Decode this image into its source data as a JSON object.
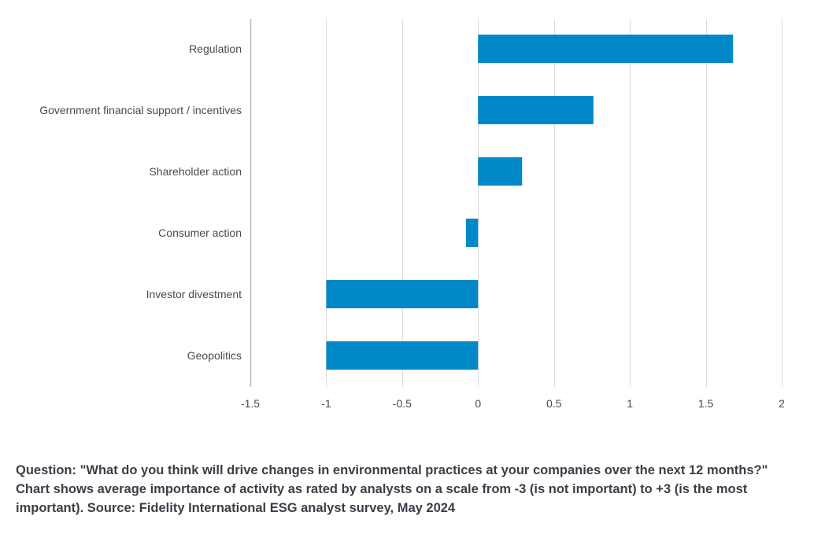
{
  "chart_data": {
    "type": "bar",
    "orientation": "horizontal",
    "categories": [
      "Regulation",
      "Government financial support / incentives",
      "Shareholder action",
      "Consumer action",
      "Investor divestment",
      "Geopolitics"
    ],
    "values": [
      1.68,
      0.76,
      0.29,
      -0.08,
      -1.0,
      -1.0
    ],
    "xlim": [
      -1.5,
      2
    ],
    "x_ticks": [
      "-1.5",
      "-1",
      "-0.5",
      "0",
      "0.5",
      "1",
      "1.5",
      "2"
    ],
    "x_tick_values": [
      -1.5,
      -1,
      -0.5,
      0,
      0.5,
      1,
      1.5,
      2
    ],
    "grid": "vertical",
    "legend": "none",
    "bar_color": "#0088c9",
    "title": "",
    "xlabel": "",
    "ylabel": ""
  },
  "caption": "Question: \"What do you think will drive changes in environmental practices at your companies over the next 12 months?\" Chart shows average importance of activity as rated by analysts on a scale from -3 (is not important) to +3 (is the most important). Source: Fidelity International ESG analyst survey, May 2024"
}
